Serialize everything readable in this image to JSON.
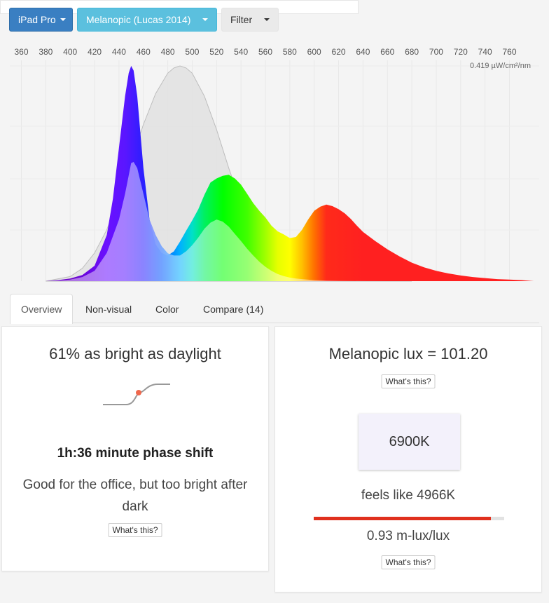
{
  "toolbar": {
    "device_label": "iPad Pro",
    "model_label": "Melanopic (Lucas 2014)",
    "filter_label": "Filter"
  },
  "colors": {
    "device_button": "#3a7fc2",
    "model_button": "#5bc0de",
    "melanopic_curve": "#dedede",
    "progress": "#e0301e"
  },
  "chart_data": {
    "type": "area",
    "x_ticks": [
      360,
      380,
      400,
      420,
      440,
      460,
      480,
      500,
      520,
      540,
      560,
      580,
      600,
      620,
      640,
      660,
      680,
      700,
      720,
      740,
      760
    ],
    "xlim": [
      350,
      780
    ],
    "peak_label": "0.419 µW/cm²/nm",
    "grid": true,
    "series": [
      {
        "role": "spectral power",
        "x": [
          370,
          380,
          390,
          400,
          410,
          420,
          430,
          435,
          440,
          445,
          448,
          450,
          452,
          455,
          460,
          465,
          470,
          475,
          480,
          485,
          490,
          495,
          500,
          505,
          510,
          515,
          520,
          525,
          530,
          535,
          540,
          545,
          550,
          555,
          560,
          565,
          570,
          575,
          580,
          585,
          590,
          595,
          600,
          605,
          610,
          615,
          620,
          625,
          630,
          635,
          640,
          650,
          660,
          670,
          680,
          690,
          700,
          710,
          720,
          730,
          740,
          750,
          760,
          770,
          780
        ],
        "y": [
          0,
          0,
          0.002,
          0.005,
          0.012,
          0.03,
          0.09,
          0.16,
          0.26,
          0.36,
          0.405,
          0.419,
          0.41,
          0.36,
          0.22,
          0.12,
          0.072,
          0.055,
          0.05,
          0.058,
          0.077,
          0.098,
          0.118,
          0.14,
          0.168,
          0.192,
          0.2,
          0.205,
          0.207,
          0.2,
          0.188,
          0.17,
          0.152,
          0.137,
          0.124,
          0.108,
          0.097,
          0.091,
          0.084,
          0.086,
          0.1,
          0.12,
          0.137,
          0.145,
          0.149,
          0.146,
          0.14,
          0.132,
          0.121,
          0.108,
          0.096,
          0.078,
          0.062,
          0.048,
          0.036,
          0.027,
          0.02,
          0.015,
          0.011,
          0.008,
          0.006,
          0.004,
          0.003,
          0.002,
          0
        ]
      },
      {
        "role": "melanopic weighted",
        "x": [
          380,
          390,
          400,
          410,
          420,
          430,
          440,
          445,
          450,
          452,
          455,
          460,
          465,
          470,
          475,
          480,
          485,
          490,
          495,
          500,
          505,
          510,
          515,
          520,
          525,
          530,
          535,
          540,
          545,
          550,
          555,
          560,
          565,
          570,
          575,
          580,
          585,
          590,
          600,
          610,
          620,
          640,
          660
        ],
        "y": [
          0,
          0.001,
          0.003,
          0.008,
          0.02,
          0.055,
          0.12,
          0.17,
          0.23,
          0.232,
          0.22,
          0.17,
          0.12,
          0.09,
          0.068,
          0.054,
          0.05,
          0.05,
          0.058,
          0.07,
          0.085,
          0.102,
          0.114,
          0.12,
          0.116,
          0.106,
          0.092,
          0.078,
          0.063,
          0.05,
          0.038,
          0.028,
          0.02,
          0.014,
          0.01,
          0.007,
          0.005,
          0.004,
          0.002,
          0.001,
          0.0005,
          0.0002,
          0
        ]
      },
      {
        "role": "melanopic sensitivity",
        "x": [
          380,
          400,
          410,
          420,
          430,
          440,
          450,
          460,
          470,
          480,
          485,
          490,
          495,
          500,
          510,
          520,
          530,
          540,
          550,
          560,
          570,
          580,
          590,
          600,
          620,
          640,
          660,
          680
        ],
        "y": [
          0,
          0.009,
          0.025,
          0.055,
          0.1,
          0.163,
          0.234,
          0.305,
          0.365,
          0.405,
          0.415,
          0.419,
          0.415,
          0.405,
          0.36,
          0.295,
          0.22,
          0.152,
          0.097,
          0.057,
          0.031,
          0.016,
          0.008,
          0.004,
          0.001,
          0.0003,
          0.0001,
          0
        ]
      }
    ]
  },
  "tabs": [
    {
      "label": "Overview",
      "active": true
    },
    {
      "label": "Non-visual",
      "active": false
    },
    {
      "label": "Color",
      "active": false
    },
    {
      "label": "Compare (14)",
      "active": false
    }
  ],
  "overview": {
    "brightness_text": "61% as bright as daylight",
    "whats_this": "What's this?",
    "phase_shift": "1h:36 minute phase shift",
    "advice": "Good for the office, but too bright after dark"
  },
  "melanopic": {
    "lux_text": "Melanopic lux = 101.20",
    "whats_this": "What's this?",
    "cct": "6900K",
    "feels_like": "feels like 4966K",
    "feels_fraction": 0.93,
    "ratio_text": "0.93 m-lux/lux",
    "whats_this_2": "What's this?"
  }
}
